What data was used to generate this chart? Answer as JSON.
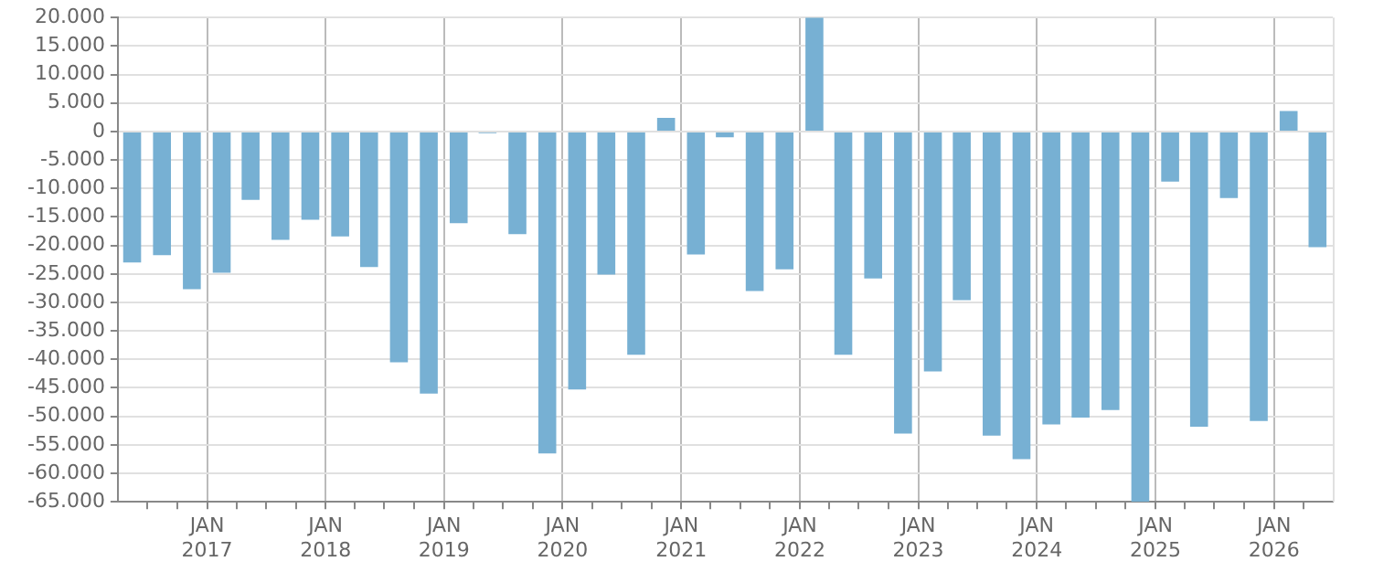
{
  "chart_data": {
    "type": "bar",
    "color": "#77b0d3",
    "x": [
      "2016-05-15",
      "2016-08-15",
      "2016-11-15",
      "2017-02-15",
      "2017-05-15",
      "2017-08-15",
      "2017-11-15",
      "2018-02-15",
      "2018-05-15",
      "2018-08-15",
      "2018-11-15",
      "2019-02-15",
      "2019-05-15",
      "2019-08-15",
      "2019-11-15",
      "2020-02-15",
      "2020-05-15",
      "2020-08-15",
      "2020-11-15",
      "2021-02-15",
      "2021-05-15",
      "2021-08-15",
      "2021-11-15",
      "2022-02-15",
      "2022-05-15",
      "2022-08-15",
      "2022-11-15",
      "2023-02-15",
      "2023-05-15",
      "2023-08-15",
      "2023-11-15",
      "2024-02-15",
      "2024-05-15",
      "2024-08-15",
      "2024-11-15",
      "2025-02-15",
      "2025-05-15",
      "2025-08-15",
      "2025-11-15",
      "2026-02-15",
      "2026-05-15"
    ],
    "values": [
      -23000,
      -21700,
      -27700,
      -24800,
      -12000,
      -19000,
      -15500,
      -18400,
      -23800,
      -40500,
      -46000,
      -16100,
      -300,
      -18000,
      -56500,
      -45300,
      -25100,
      -39200,
      2400,
      -21600,
      -1000,
      -28000,
      -24200,
      20000,
      -39200,
      -25800,
      -53000,
      -42100,
      -29600,
      -53400,
      -57500,
      -51400,
      -50200,
      -48900,
      -65000,
      -8800,
      -51800,
      -11700,
      -50800,
      3600,
      -20300
    ],
    "xlim": [
      "2016-04-01",
      "2026-07-01"
    ],
    "xticks": [
      {
        "value": "2016-07-01",
        "label": null
      },
      {
        "value": "2016-10-01",
        "label": null
      },
      {
        "value": "2017-01-01",
        "label": "JAN\n2017"
      },
      {
        "value": "2017-04-01",
        "label": null
      },
      {
        "value": "2017-07-01",
        "label": null
      },
      {
        "value": "2017-10-01",
        "label": null
      },
      {
        "value": "2018-01-01",
        "label": "JAN\n2018"
      },
      {
        "value": "2018-04-01",
        "label": null
      },
      {
        "value": "2018-07-01",
        "label": null
      },
      {
        "value": "2018-10-01",
        "label": null
      },
      {
        "value": "2019-01-01",
        "label": "JAN\n2019"
      },
      {
        "value": "2019-04-01",
        "label": null
      },
      {
        "value": "2019-07-01",
        "label": null
      },
      {
        "value": "2019-10-01",
        "label": null
      },
      {
        "value": "2020-01-01",
        "label": "JAN\n2020"
      },
      {
        "value": "2020-04-01",
        "label": null
      },
      {
        "value": "2020-07-01",
        "label": null
      },
      {
        "value": "2020-10-01",
        "label": null
      },
      {
        "value": "2021-01-01",
        "label": "JAN\n2021"
      },
      {
        "value": "2021-04-01",
        "label": null
      },
      {
        "value": "2021-07-01",
        "label": null
      },
      {
        "value": "2021-10-01",
        "label": null
      },
      {
        "value": "2022-01-01",
        "label": "JAN\n2022"
      },
      {
        "value": "2022-04-01",
        "label": null
      },
      {
        "value": "2022-07-01",
        "label": null
      },
      {
        "value": "2022-10-01",
        "label": null
      },
      {
        "value": "2023-01-01",
        "label": "JAN\n2023"
      },
      {
        "value": "2023-04-01",
        "label": null
      },
      {
        "value": "2023-07-01",
        "label": null
      },
      {
        "value": "2023-10-01",
        "label": null
      },
      {
        "value": "2024-01-01",
        "label": "JAN\n2024"
      },
      {
        "value": "2024-04-01",
        "label": null
      },
      {
        "value": "2024-07-01",
        "label": null
      },
      {
        "value": "2024-10-01",
        "label": null
      },
      {
        "value": "2025-01-01",
        "label": "JAN\n2025"
      },
      {
        "value": "2025-04-01",
        "label": null
      },
      {
        "value": "2025-07-01",
        "label": null
      },
      {
        "value": "2025-10-01",
        "label": null
      },
      {
        "value": "2026-01-01",
        "label": "JAN\n2026"
      },
      {
        "value": "2026-04-01",
        "label": null
      }
    ],
    "ylim": [
      -65000,
      20000
    ],
    "yticks": [
      {
        "value": -65000,
        "label": "-65.000"
      },
      {
        "value": -60000,
        "label": "-60.000"
      },
      {
        "value": -55000,
        "label": "-55.000"
      },
      {
        "value": -50000,
        "label": "-50.000"
      },
      {
        "value": -45000,
        "label": "-45.000"
      },
      {
        "value": -40000,
        "label": "-40.000"
      },
      {
        "value": -35000,
        "label": "-35.000"
      },
      {
        "value": -30000,
        "label": "-30.000"
      },
      {
        "value": -25000,
        "label": "-25.000"
      },
      {
        "value": -20000,
        "label": "-20.000"
      },
      {
        "value": -15000,
        "label": "-15.000"
      },
      {
        "value": -10000,
        "label": "-10.000"
      },
      {
        "value": -5000,
        "label": "-5.000"
      },
      {
        "value": 0,
        "label": "0"
      },
      {
        "value": 5000,
        "label": "5.000"
      },
      {
        "value": 10000,
        "label": "10.000"
      },
      {
        "value": 15000,
        "label": "15.000"
      },
      {
        "value": 20000,
        "label": "20.000"
      }
    ],
    "grid": true
  }
}
